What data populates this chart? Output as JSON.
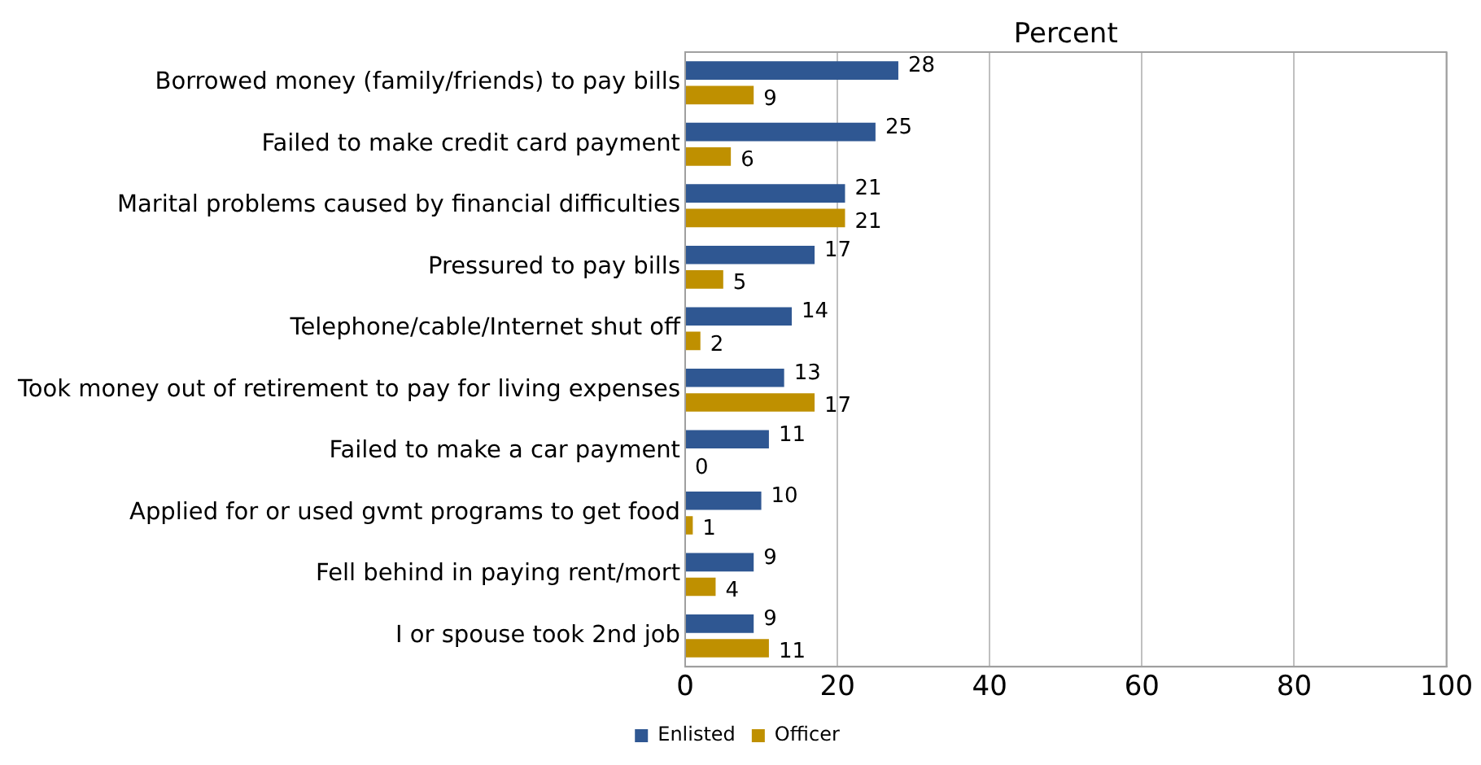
{
  "chart_data": {
    "type": "bar",
    "orientation": "horizontal",
    "xlabel": "Percent",
    "categories": [
      "Borrowed money (family/friends) to pay bills",
      "Failed to make credit card payment",
      "Marital problems caused by financial difficulties",
      "Pressured to pay bills",
      "Telephone/cable/Internet shut off",
      "Took money out of retirement to pay for living expenses",
      "Failed to make a car payment",
      "Applied for or used gvmt programs to get food",
      "Fell behind in paying rent/mort",
      "I or spouse took 2nd job"
    ],
    "series": [
      {
        "name": "Enlisted",
        "color": "#2f5792",
        "values": [
          28,
          25,
          21,
          17,
          14,
          13,
          11,
          10,
          9,
          9
        ]
      },
      {
        "name": "Officer",
        "color": "#bf9000",
        "values": [
          9,
          6,
          21,
          5,
          2,
          17,
          0,
          1,
          4,
          11
        ]
      }
    ],
    "xlim": [
      0,
      100
    ],
    "xticks": [
      0,
      20,
      40,
      60,
      80,
      100
    ],
    "grid": "x",
    "legend": "bottom",
    "data_labels": true
  }
}
